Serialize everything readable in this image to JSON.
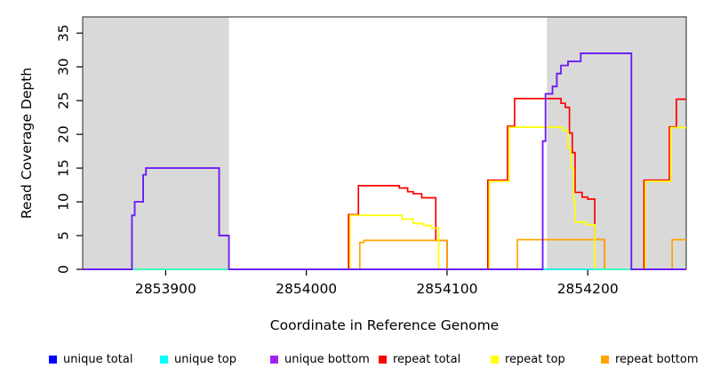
{
  "chart_data": {
    "type": "line",
    "subtype": "step-coverage",
    "title": "",
    "xlabel": "Coordinate in Reference Genome",
    "ylabel": "Read Coverage Depth",
    "x_range": [
      2853841,
      2854270
    ],
    "y_range": [
      0,
      37.4
    ],
    "x_ticks": [
      2853900,
      2854000,
      2854100,
      2854200
    ],
    "y_ticks": [
      0,
      5,
      10,
      15,
      20,
      25,
      30,
      35
    ],
    "grid": false,
    "background_color": "#ffffff",
    "shaded_region_color": "#d9d9d9",
    "shaded_regions": [
      {
        "name": "left-repeat-region",
        "x0": 2853841,
        "x1": 2853945
      },
      {
        "name": "right-repeat-region",
        "x0": 2854171,
        "x1": 2854270
      }
    ],
    "series": [
      {
        "name": "repeat total",
        "color": "#ff0000",
        "opacity": 1,
        "steps": [
          [
            2853841,
            0
          ],
          [
            2854030,
            8.1
          ],
          [
            2854037,
            12.4
          ],
          [
            2854066,
            12.05
          ],
          [
            2854072,
            11.5
          ],
          [
            2854076,
            11.2
          ],
          [
            2854082,
            10.6
          ],
          [
            2854092,
            4.3
          ],
          [
            2854100,
            0
          ],
          [
            2854129,
            13.2
          ],
          [
            2854143,
            21.2
          ],
          [
            2854148,
            25.3
          ],
          [
            2854181,
            24.6
          ],
          [
            2854184,
            24.0
          ],
          [
            2854187,
            20.2
          ],
          [
            2854189,
            17.3
          ],
          [
            2854191,
            11.4
          ],
          [
            2854196,
            10.7
          ],
          [
            2854200,
            10.4
          ],
          [
            2854205,
            4.4
          ],
          [
            2854212,
            0
          ],
          [
            2854240,
            13.2
          ],
          [
            2854258,
            21.1
          ],
          [
            2854263,
            25.2
          ]
        ]
      },
      {
        "name": "repeat bottom",
        "color": "#ffa500",
        "opacity": 1,
        "steps": [
          [
            2853841,
            0
          ],
          [
            2854038,
            4.0
          ],
          [
            2854041,
            4.3
          ],
          [
            2854100,
            0
          ],
          [
            2854150,
            4.4
          ],
          [
            2854212,
            0
          ],
          [
            2854260,
            4.4
          ]
        ]
      },
      {
        "name": "repeat top",
        "color": "#ffff00",
        "opacity": 1,
        "steps": [
          [
            2853841,
            0
          ],
          [
            2854031,
            8.0
          ],
          [
            2854068,
            7.45
          ],
          [
            2854076,
            6.8
          ],
          [
            2854083,
            6.5
          ],
          [
            2854089,
            6.1
          ],
          [
            2854094,
            0
          ],
          [
            2854130,
            13.05
          ],
          [
            2854144,
            21.05
          ],
          [
            2854182,
            20.6
          ],
          [
            2854186,
            18
          ],
          [
            2854188,
            15
          ],
          [
            2854190,
            10
          ],
          [
            2854191,
            7.0
          ],
          [
            2854199,
            6.6
          ],
          [
            2854205,
            0
          ],
          [
            2854241,
            13.05
          ],
          [
            2854259,
            21.0
          ]
        ]
      },
      {
        "name": "unique top",
        "color": "#00ffff",
        "opacity": 0.85,
        "steps": [
          [
            2853841,
            0
          ]
        ]
      },
      {
        "name": "unique total",
        "color": "#0000ff",
        "opacity": 1,
        "steps": [
          [
            2853841,
            0
          ],
          [
            2853876,
            8
          ],
          [
            2853878,
            10
          ],
          [
            2853884,
            14
          ],
          [
            2853886,
            15
          ],
          [
            2853938,
            5
          ],
          [
            2853945,
            0
          ],
          [
            2854168,
            19
          ],
          [
            2854170,
            26
          ],
          [
            2854175,
            27.1
          ],
          [
            2854178,
            29
          ],
          [
            2854181,
            30.2
          ],
          [
            2854186,
            30.8
          ],
          [
            2854195,
            32
          ],
          [
            2854231,
            0
          ]
        ]
      },
      {
        "name": "unique bottom",
        "color": "#a020f0",
        "opacity": 0.72,
        "steps": [
          [
            2853841,
            0
          ],
          [
            2853876,
            8
          ],
          [
            2853878,
            10
          ],
          [
            2853884,
            14
          ],
          [
            2853886,
            15
          ],
          [
            2853938,
            5
          ],
          [
            2853945,
            0
          ],
          [
            2854168,
            19
          ],
          [
            2854170,
            26
          ],
          [
            2854175,
            27.1
          ],
          [
            2854178,
            29
          ],
          [
            2854181,
            30.2
          ],
          [
            2854186,
            30.8
          ],
          [
            2854195,
            32
          ],
          [
            2854231,
            0
          ]
        ]
      }
    ],
    "legend": {
      "position": "bottom",
      "items": [
        {
          "label": "unique total",
          "color": "#0000ff"
        },
        {
          "label": "unique top",
          "color": "#00ffff"
        },
        {
          "label": "unique bottom",
          "color": "#a020f0"
        },
        {
          "label": "repeat total",
          "color": "#ff0000"
        },
        {
          "label": "repeat top",
          "color": "#ffff00"
        },
        {
          "label": "repeat bottom",
          "color": "#ffa500"
        }
      ]
    }
  }
}
